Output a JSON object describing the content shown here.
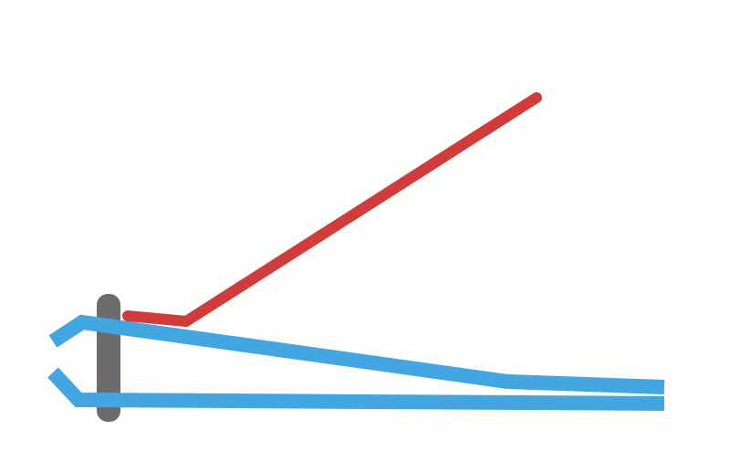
{
  "diagram": {
    "subject": "nail-clipper-side-view",
    "colors": {
      "background": "#fdfdfb",
      "lever": "#d03c3c",
      "jaws": "#44a6e0",
      "pin": "#6b6b6b"
    },
    "parts": {
      "lever": "red-lever",
      "upper_jaw": "blue-upper-jaw",
      "lower_jaw": "blue-lower-jaw",
      "pin": "gray-pin"
    }
  }
}
